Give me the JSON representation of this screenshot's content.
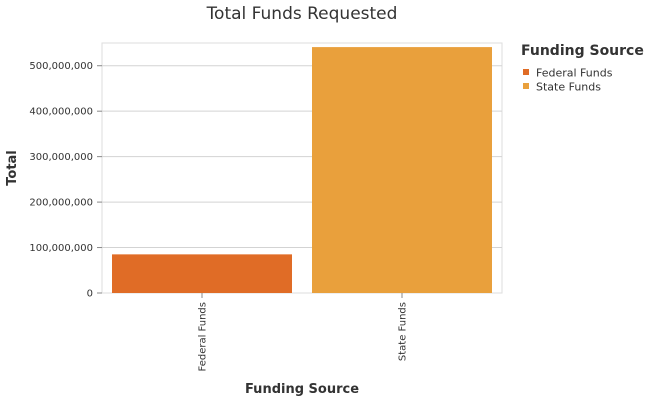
{
  "chart_data": {
    "type": "bar",
    "title": "Total Funds Requested",
    "xlabel": "Funding Source",
    "ylabel": "Total",
    "categories": [
      "Federal Funds",
      "State Funds"
    ],
    "values": [
      85000000,
      541000000
    ],
    "colors": [
      "#e06c26",
      "#e9a03c"
    ],
    "ylim": [
      0,
      550000000
    ],
    "yticks": [
      0,
      100000000,
      200000000,
      300000000,
      400000000,
      500000000
    ],
    "ytick_labels": [
      "0",
      "100,000,000",
      "200,000,000",
      "300,000,000",
      "400,000,000",
      "500,000,000"
    ],
    "grid": true,
    "legend": {
      "title": "Funding Source",
      "placement": "right",
      "items": [
        "Federal Funds",
        "State Funds"
      ]
    }
  }
}
